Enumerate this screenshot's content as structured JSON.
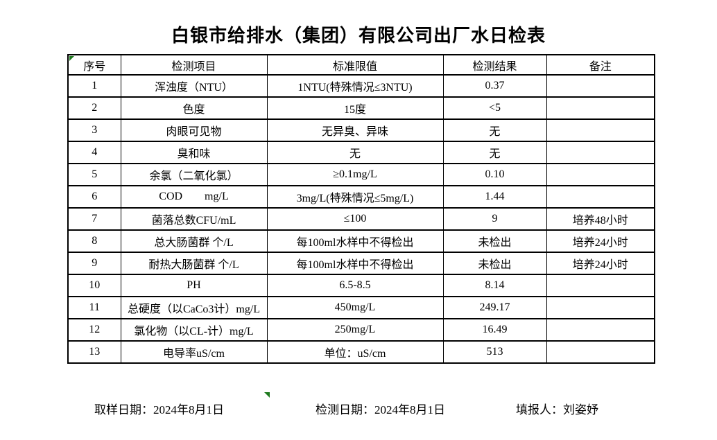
{
  "title": "白银市给排水（集团）有限公司出厂水日检表",
  "table": {
    "headers": [
      "序号",
      "检测项目",
      "标准限值",
      "检测结果",
      "备注"
    ],
    "rows": [
      {
        "no": "1",
        "item": "浑浊度（NTU）",
        "limit": "1NTU(特殊情况≤3NTU)",
        "result": "0.37",
        "remark": ""
      },
      {
        "no": "2",
        "item": "色度",
        "limit": "15度",
        "result": "<5",
        "remark": ""
      },
      {
        "no": "3",
        "item": "肉眼可见物",
        "limit": "无异臭、异味",
        "result": "无",
        "remark": ""
      },
      {
        "no": "4",
        "item": "臭和味",
        "limit": "无",
        "result": "无",
        "remark": ""
      },
      {
        "no": "5",
        "item": "余氯（二氧化氯）",
        "limit": "≥0.1mg/L",
        "result": "0.10",
        "remark": ""
      },
      {
        "no": "6",
        "item": "COD        mg/L",
        "limit": "3mg/L(特殊情况≤5mg/L)",
        "result": "1.44",
        "remark": ""
      },
      {
        "no": "7",
        "item": "菌落总数CFU/mL",
        "limit": "≤100",
        "result": "9",
        "remark": "培养48小时"
      },
      {
        "no": "8",
        "item": "总大肠菌群 个/L",
        "limit": "每100ml水样中不得检出",
        "result": "未检出",
        "remark": "培养24小时"
      },
      {
        "no": "9",
        "item": "耐热大肠菌群 个/L",
        "limit": "每100ml水样中不得检出",
        "result": "未检出",
        "remark": "培养24小时"
      },
      {
        "no": "10",
        "item": "PH",
        "limit": "6.5-8.5",
        "result": "8.14",
        "remark": ""
      },
      {
        "no": "11",
        "item": "总硬度（以CaCo3计）mg/L",
        "limit": "450mg/L",
        "result": "249.17",
        "remark": ""
      },
      {
        "no": "12",
        "item": "氯化物（以CL-计）mg/L",
        "limit": "250mg/L",
        "result": "16.49",
        "remark": ""
      },
      {
        "no": "13",
        "item": "电导率uS/cm",
        "limit": "单位：uS/cm",
        "result": "513",
        "remark": ""
      }
    ]
  },
  "footer": {
    "sampling_date": "取样日期：2024年8月1日",
    "test_date": "检测日期：2024年8月1日",
    "reporter": "填报人：刘姿妤"
  },
  "colors": {
    "background": "#ffffff",
    "border": "#000000",
    "marker_green": "#1e7a1e"
  }
}
